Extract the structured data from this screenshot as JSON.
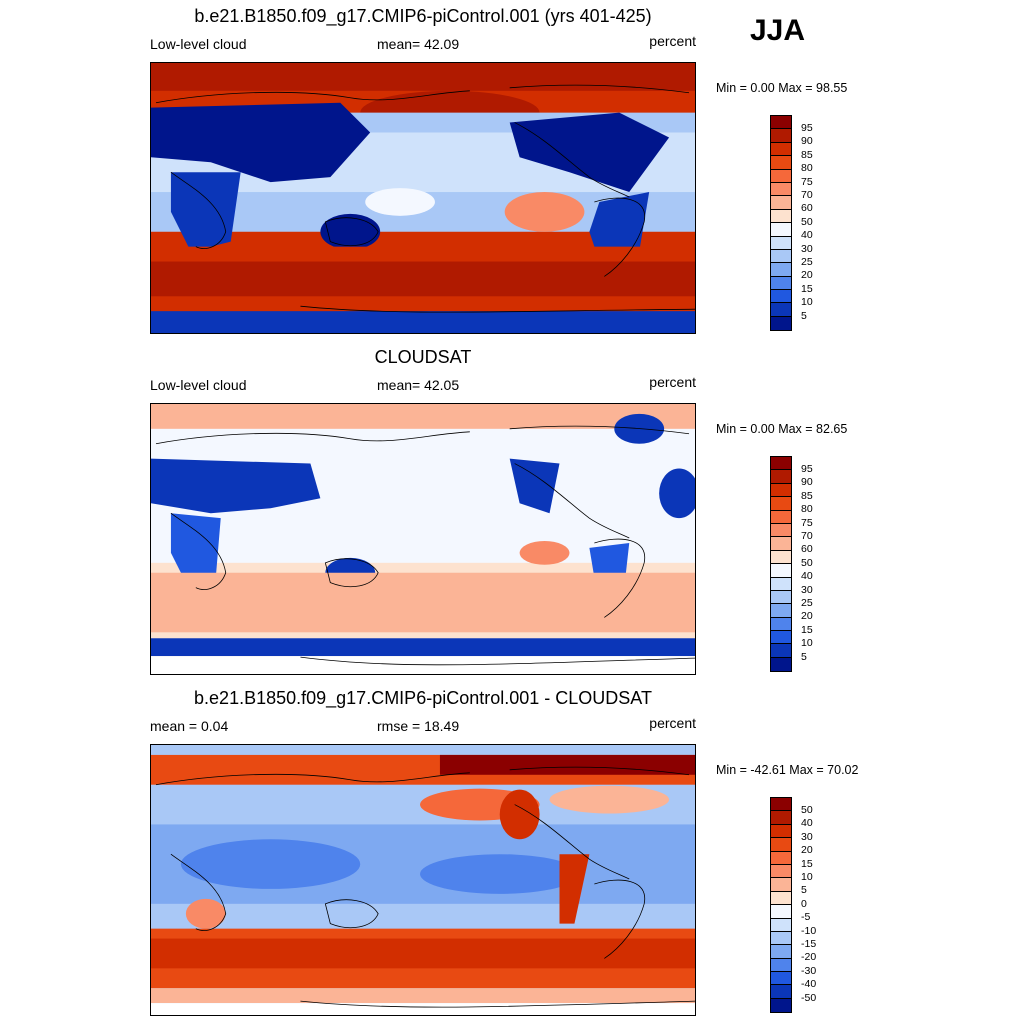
{
  "season": "JJA",
  "panels": [
    {
      "title": "b.e21.B1850.f09_g17.CMIP6-piControl.001 (yrs 401-425)",
      "left_label": "Low-level cloud",
      "center_label": "mean=  42.09",
      "right_label": "percent",
      "minmax": "Min =    0.00 Max =  98.55",
      "colorbar": {
        "levels": [
          "95",
          "90",
          "85",
          "80",
          "75",
          "70",
          "60",
          "50",
          "40",
          "30",
          "25",
          "20",
          "15",
          "10",
          "5"
        ],
        "colors": [
          "#8b0000",
          "#b01a00",
          "#d22e00",
          "#e84a12",
          "#f5683a",
          "#f98a66",
          "#fbb496",
          "#fde2cf",
          "#f4f8ff",
          "#cfe2fb",
          "#a9c8f6",
          "#7ea9f1",
          "#4f83ec",
          "#2058e0",
          "#0b36b8",
          "#00158c"
        ]
      },
      "map_type": "model"
    },
    {
      "title": "CLOUDSAT",
      "left_label": "Low-level cloud",
      "center_label": "mean=  42.05",
      "right_label": "percent",
      "minmax": "Min =    0.00 Max =  82.65",
      "colorbar": {
        "levels": [
          "95",
          "90",
          "85",
          "80",
          "75",
          "70",
          "60",
          "50",
          "40",
          "30",
          "25",
          "20",
          "15",
          "10",
          "5"
        ],
        "colors": [
          "#8b0000",
          "#b01a00",
          "#d22e00",
          "#e84a12",
          "#f5683a",
          "#f98a66",
          "#fbb496",
          "#fde2cf",
          "#f4f8ff",
          "#cfe2fb",
          "#a9c8f6",
          "#7ea9f1",
          "#4f83ec",
          "#2058e0",
          "#0b36b8",
          "#00158c"
        ]
      },
      "map_type": "obs"
    },
    {
      "title": "b.e21.B1850.f09_g17.CMIP6-piControl.001 - CLOUDSAT",
      "left_label": "mean =   0.04",
      "center_label": "rmse =  18.49",
      "right_label": "percent",
      "minmax": "Min = -42.61 Max =  70.02",
      "colorbar": {
        "levels": [
          "50",
          "40",
          "30",
          "20",
          "15",
          "10",
          "5",
          "0",
          "-5",
          "-10",
          "-15",
          "-20",
          "-30",
          "-40",
          "-50"
        ],
        "colors": [
          "#8b0000",
          "#b01a00",
          "#d22e00",
          "#e84a12",
          "#f5683a",
          "#f98a66",
          "#fbb496",
          "#fde2cf",
          "#f4f8ff",
          "#cfe2fb",
          "#a9c8f6",
          "#7ea9f1",
          "#4f83ec",
          "#2058e0",
          "#0b36b8",
          "#00158c"
        ]
      },
      "map_type": "diff"
    }
  ]
}
